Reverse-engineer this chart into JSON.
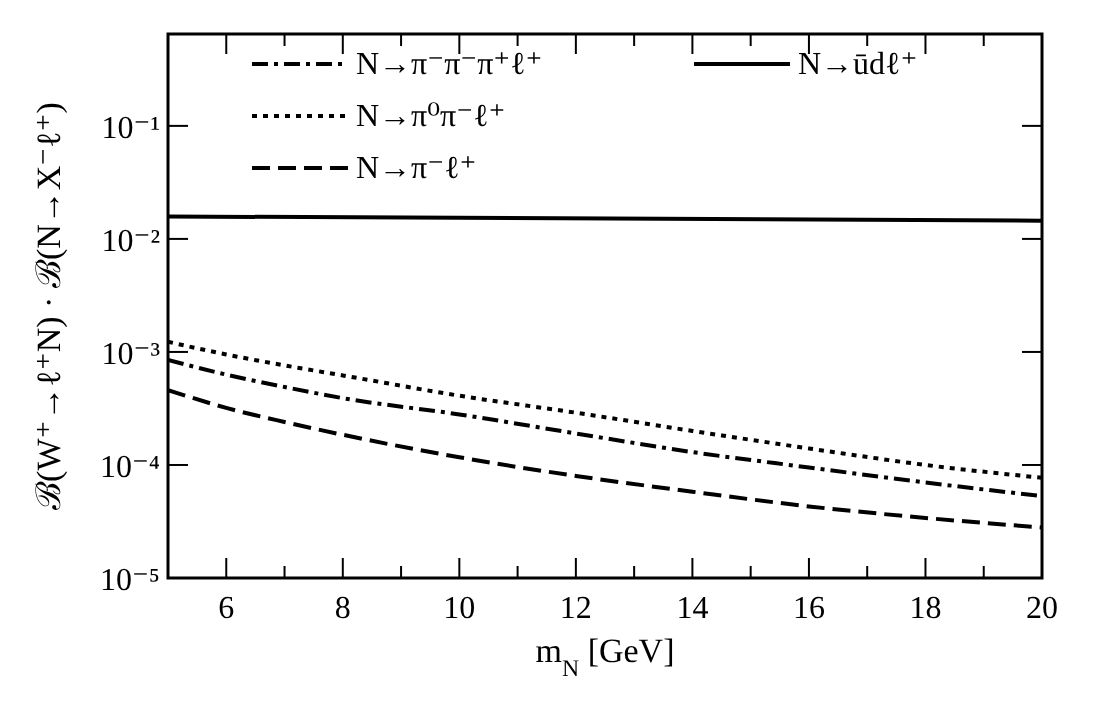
{
  "chart_data": {
    "type": "line",
    "xlabel": "m$_{N}$ [GeV]",
    "ylabel": "ℬ(W⁺→ℓ⁺N) · ℬ(N→X⁻ℓ⁺)",
    "log": "y",
    "legend": "top",
    "xlim": [
      5,
      20
    ],
    "ylim": [
      1e-05,
      0.65
    ],
    "xticks": [
      {
        "value": 5,
        "label": null
      },
      6,
      {
        "value": 7,
        "label": null
      },
      8,
      {
        "value": 9,
        "label": null
      },
      10,
      {
        "value": 11,
        "label": null
      },
      12,
      {
        "value": 13,
        "label": null
      },
      14,
      {
        "value": 15,
        "label": null
      },
      16,
      {
        "value": 17,
        "label": null
      },
      18,
      {
        "value": 19,
        "label": null
      },
      20
    ],
    "yticks": [
      {
        "value": 1e-05,
        "label": "10⁻⁵"
      },
      {
        "value": 0.0001,
        "label": "10⁻⁴"
      },
      {
        "value": 0.001,
        "label": "10⁻³"
      },
      {
        "value": 0.01,
        "label": "10⁻²"
      },
      {
        "value": 0.1,
        "label": "10⁻¹"
      }
    ],
    "x": [
      5,
      6,
      7,
      8,
      10,
      12,
      14,
      16,
      18,
      20
    ],
    "series": [
      {
        "name": "N→π⁻π⁻π⁺ℓ⁺",
        "color": "#000000",
        "line_style": "dashdot",
        "values": [
          0.00085,
          0.00063,
          0.00049,
          0.00039,
          0.00028,
          0.00019,
          0.00013,
          9.5e-05,
          7e-05,
          5.3e-05
        ]
      },
      {
        "name": "N→π⁰π⁻ℓ⁺",
        "color": "#000000",
        "line_style": "dotted",
        "values": [
          0.00123,
          0.00095,
          0.00076,
          0.00062,
          0.00041,
          0.00029,
          0.0002,
          0.00014,
          0.0001,
          7.7e-05
        ]
      },
      {
        "name": "N→π⁻ℓ⁺",
        "color": "#000000",
        "line_style": "dashed",
        "values": [
          0.00046,
          0.00032,
          0.00024,
          0.000185,
          0.000117,
          8e-05,
          5.8e-05,
          4.3e-05,
          3.4e-05,
          2.8e-05
        ]
      },
      {
        "name": "N→ūdℓ⁺",
        "color": "#000000",
        "line_style": "solid",
        "x": [
          5,
          20
        ],
        "values": [
          0.0158,
          0.0145
        ]
      }
    ]
  }
}
